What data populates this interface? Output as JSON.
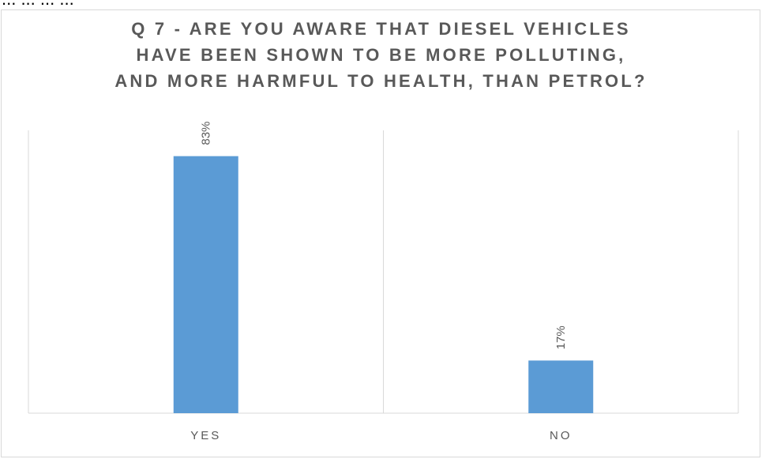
{
  "page": {
    "partial_caption": "...      ...      ...      ..."
  },
  "chart_data": {
    "type": "bar",
    "title_lines": [
      "Q 7 - ARE YOU AWARE THAT DIESEL VEHICLES",
      "HAVE BEEN SHOWN TO BE MORE POLLUTING,",
      "AND MORE HARMFUL TO HEALTH, THAN PETROL?"
    ],
    "categories": [
      "YES",
      "NO"
    ],
    "values": [
      83,
      17
    ],
    "value_labels": [
      "83%",
      "17%"
    ],
    "ylim": [
      0,
      100
    ],
    "unit": "%",
    "bar_color": "#5b9bd5",
    "grid": false,
    "legend": "none"
  }
}
